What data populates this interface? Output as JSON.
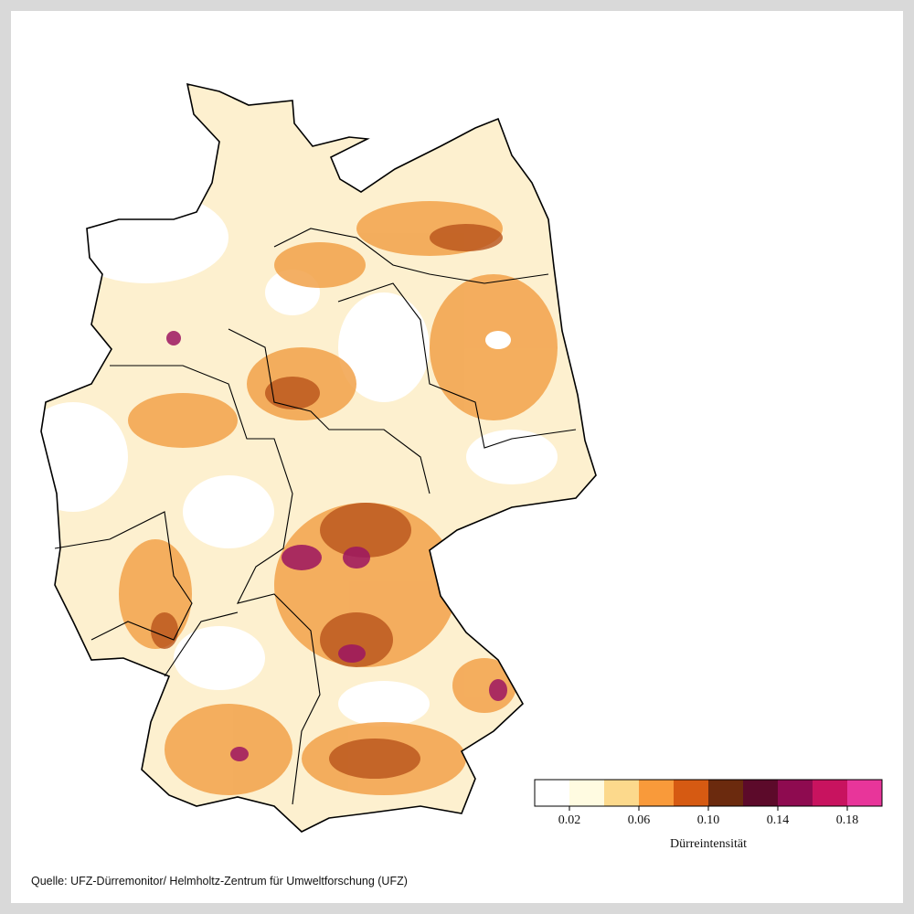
{
  "map": {
    "legend": {
      "title": "Dürreintensität",
      "lim": [
        0,
        0.2
      ],
      "colors": [
        "#ffffff",
        "#fffbe1",
        "#fcd98c",
        "#f99a3a",
        "#d65a12",
        "#6b2a0e",
        "#5c0a2a",
        "#8e0b50",
        "#c8135f",
        "#e8359a"
      ],
      "ticks": [
        0.02,
        0.06,
        {
          "value": 0.1,
          "label": "0.10"
        },
        0.14,
        0.18
      ]
    },
    "source": "Quelle: UFZ-Dürremonitor/ Helmholtz-Zentrum für Umweltforschung (UFZ)"
  }
}
